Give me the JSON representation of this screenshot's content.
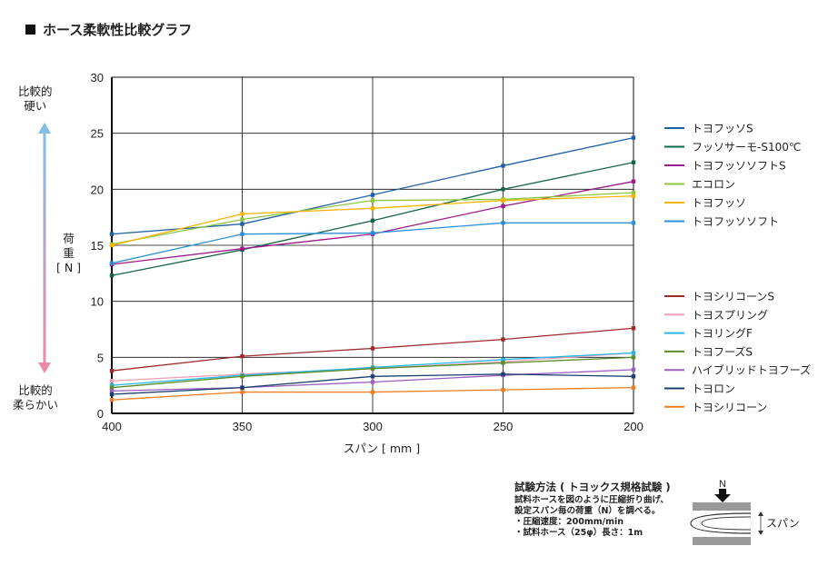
{
  "title": "ホース柔軟性比較グラフ",
  "y_side": {
    "top_label_1": "比較的",
    "top_label_2": "硬い",
    "bottom_label_1": "比較的",
    "bottom_label_2": "柔らかい",
    "axis_title_1": "荷",
    "axis_title_2": "重",
    "axis_title_3": "[ N ]"
  },
  "x_axis_title": "スパン [ mm ]",
  "test_method": {
    "title": "試験方法 ( トヨックス規格試験 )",
    "line1": "試料ホースを図のように圧縮折り曲げ、",
    "line2": "設定スパン毎の荷重（N）を調べる。",
    "line3": "・圧縮速度：200mm/min",
    "line4": "・試料ホース（25φ）長さ：1m",
    "diagram_force": "N",
    "diagram_span": "スパン"
  },
  "colors": {
    "gradient_top": "#7fbfe6",
    "gradient_bottom": "#ee8aa8"
  },
  "chart_data": {
    "type": "line",
    "xlabel": "スパン [ mm ]",
    "ylabel": "荷重 [ N ]",
    "x": [
      400,
      350,
      300,
      250,
      200
    ],
    "x_reversed": true,
    "xlim": [
      400,
      200
    ],
    "ylim": [
      0,
      30
    ],
    "y_ticks": [
      0,
      5,
      10,
      15,
      20,
      25,
      30
    ],
    "grid": true,
    "legend_placement": "right",
    "series": [
      {
        "name": "トヨフッソS",
        "color": "#1f5fa6",
        "values": [
          16.0,
          16.9,
          19.5,
          22.1,
          24.6
        ]
      },
      {
        "name": "フッソサーモ-S100℃",
        "color": "#146448",
        "values": [
          12.3,
          14.6,
          17.2,
          20.0,
          22.4
        ]
      },
      {
        "name": "トヨフッソソフトS",
        "color": "#9c1a8a",
        "values": [
          13.3,
          14.7,
          16.0,
          18.5,
          20.7
        ]
      },
      {
        "name": "エコロン",
        "color": "#8dc63f",
        "values": [
          15.1,
          17.3,
          19.0,
          19.1,
          19.7
        ]
      },
      {
        "name": "トヨフッソ",
        "color": "#f4b400",
        "values": [
          15.0,
          17.8,
          18.3,
          19.0,
          19.4
        ]
      },
      {
        "name": "トヨフッソソフト",
        "color": "#2a8fd4",
        "values": [
          13.4,
          16.0,
          16.1,
          17.0,
          17.0
        ]
      },
      {
        "name": "トヨシリコーンS",
        "color": "#9e2a2b",
        "values": [
          3.8,
          5.1,
          5.8,
          6.6,
          7.6
        ]
      },
      {
        "name": "トヨスプリング",
        "color": "#f0a0b8",
        "values": [
          2.9,
          3.5,
          4.0,
          4.6,
          5.4
        ]
      },
      {
        "name": "トヨリングF",
        "color": "#29b6e6",
        "values": [
          2.5,
          3.4,
          4.1,
          4.8,
          5.4
        ]
      },
      {
        "name": "トヨフーズS",
        "color": "#5b8c2a",
        "values": [
          2.3,
          3.3,
          4.0,
          4.5,
          5.0
        ]
      },
      {
        "name": "ハイブリッドトヨフーズ",
        "color": "#9b5fc0",
        "values": [
          2.0,
          2.3,
          2.8,
          3.4,
          3.9
        ]
      },
      {
        "name": "トヨロン",
        "color": "#1c3f6e",
        "values": [
          1.7,
          2.3,
          3.3,
          3.5,
          3.3
        ]
      },
      {
        "name": "トヨシリコーン",
        "color": "#ef7d22",
        "values": [
          1.2,
          1.9,
          1.9,
          2.1,
          2.3
        ]
      }
    ]
  }
}
